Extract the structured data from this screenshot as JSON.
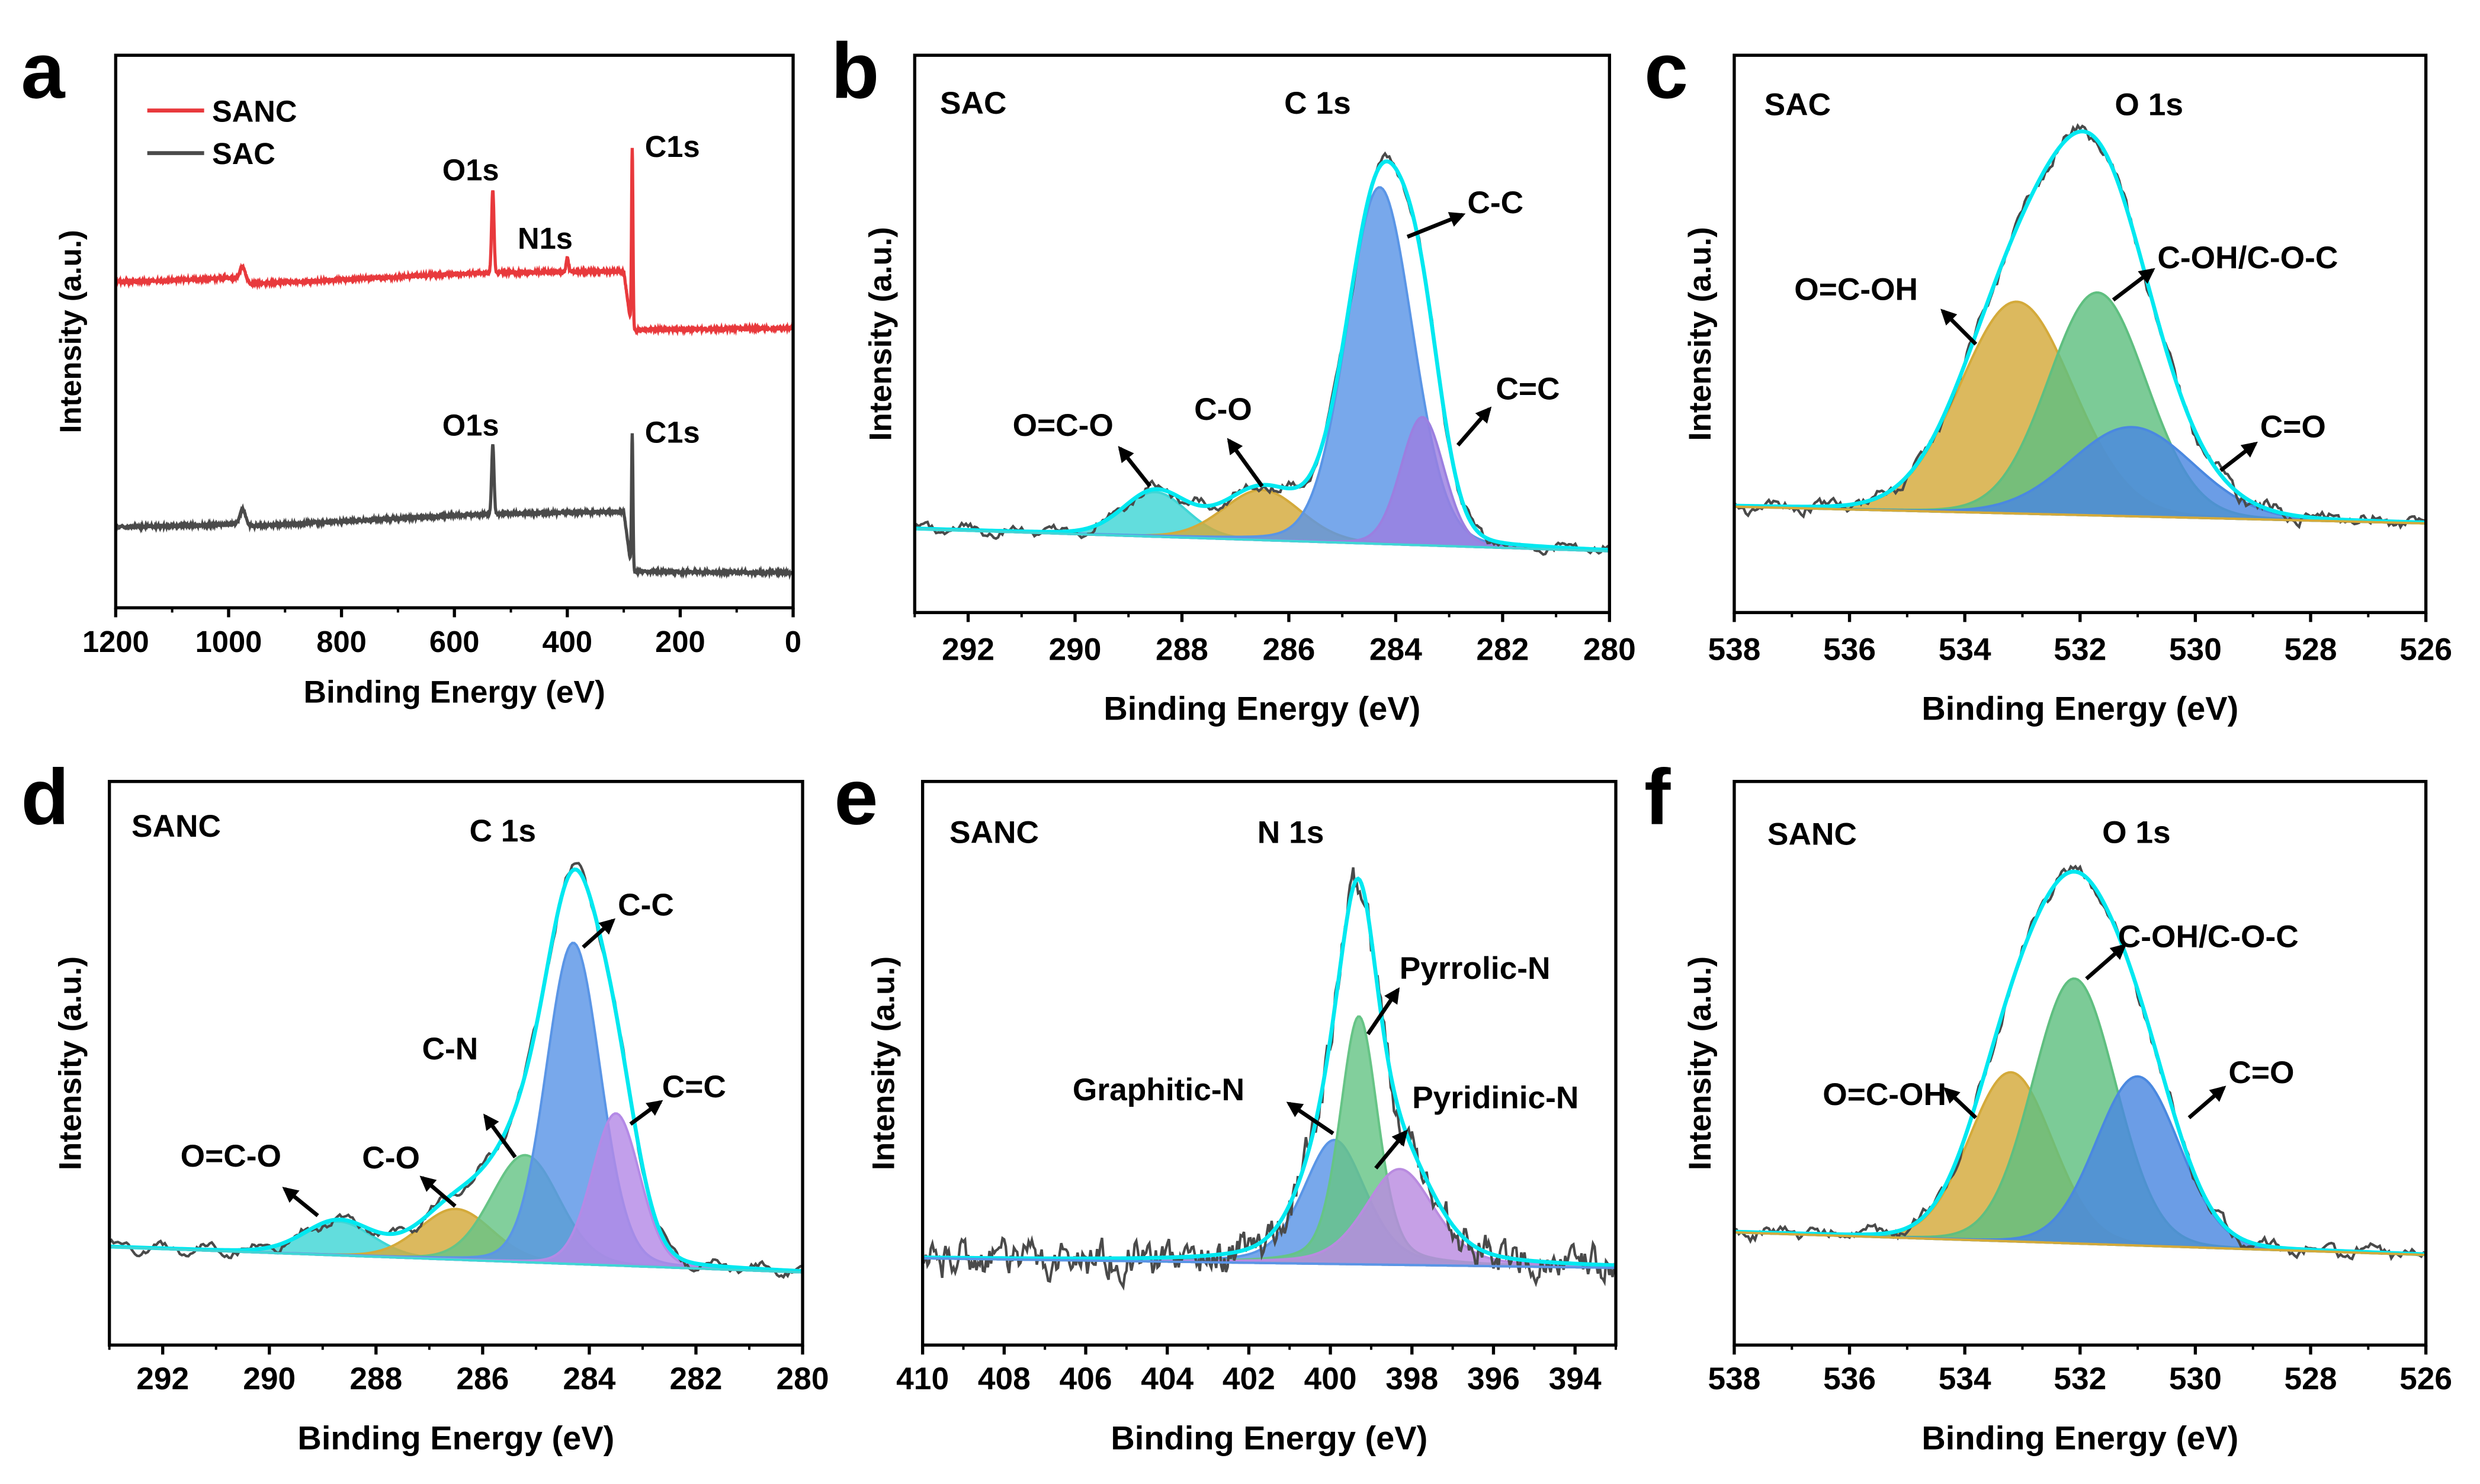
{
  "figure": {
    "panel_letters": [
      "a",
      "b",
      "c",
      "d",
      "e",
      "f"
    ]
  },
  "chart_data": [
    {
      "panel": "a",
      "type": "line",
      "xlabel": "Binding Energy (eV)",
      "ylabel": "Intensity (a.u.)",
      "xlim": [
        1200,
        0
      ],
      "ylim": [
        0,
        100
      ],
      "xticks": [
        1200,
        1000,
        800,
        600,
        400,
        200,
        0
      ],
      "legend_position": "top-left",
      "series": [
        {
          "name": "SANC",
          "color": "#e8393c",
          "baseline": [
            [
              1200,
              58.9
            ],
            [
              990,
              59.7
            ],
            [
              960,
              58.6
            ],
            [
              560,
              60.6
            ],
            [
              300,
              60.9
            ],
            [
              286,
              50.3
            ],
            [
              0,
              50.6
            ]
          ],
          "peaks": [
            {
              "label": "O1s",
              "center": 532,
              "height": 15,
              "fwhm": 5
            },
            {
              "label": "N1s",
              "center": 400,
              "height": 2.5,
              "fwhm": 5
            },
            {
              "label": "C1s",
              "center": 285,
              "height": 33,
              "fwhm": 3
            },
            {
              "center": 975,
              "height": 2.5,
              "fwhm": 12
            }
          ]
        },
        {
          "name": "SAC",
          "color": "#4a4a4a",
          "baseline": [
            [
              1200,
              14.6
            ],
            [
              990,
              15.1
            ],
            [
              960,
              14.8
            ],
            [
              560,
              16.9
            ],
            [
              300,
              17.4
            ],
            [
              286,
              6.6
            ],
            [
              0,
              6.3
            ]
          ],
          "peaks": [
            {
              "label": "O1s",
              "center": 532,
              "height": 12.5,
              "fwhm": 5
            },
            {
              "label": "C1s",
              "center": 285,
              "height": 25,
              "fwhm": 3
            },
            {
              "center": 975,
              "height": 2.8,
              "fwhm": 12
            }
          ]
        }
      ]
    },
    {
      "panel": "b",
      "type": "area",
      "sample": "SAC",
      "region": "C 1s",
      "xlabel": "Binding Energy (eV)",
      "ylabel": "Intensity (a.u.)",
      "xlim": [
        293,
        280
      ],
      "ylim": [
        0,
        100
      ],
      "xticks": [
        292,
        290,
        288,
        286,
        284,
        282,
        280
      ],
      "baseline": [
        [
          293,
          15
        ],
        [
          280,
          11
        ]
      ],
      "raw_color": "#4a4a4a",
      "envelope_color": "#00e8f0",
      "peaks": [
        {
          "label": "O=C-O",
          "center": 288.5,
          "height": 8,
          "fwhm": 1.4,
          "color": "#3fd6d6"
        },
        {
          "label": "C-O",
          "center": 286.5,
          "height": 9,
          "fwhm": 1.7,
          "color": "#d4aa3a"
        },
        {
          "label": "C-C",
          "center": 284.3,
          "height": 64,
          "fwhm": 1.45,
          "color": "#5a95e6"
        },
        {
          "label": "C=C",
          "center": 283.5,
          "height": 23,
          "fwhm": 0.95,
          "color": "#9b7fe0"
        }
      ]
    },
    {
      "panel": "c",
      "type": "area",
      "sample": "SAC",
      "region": "O 1s",
      "xlabel": "Binding Energy (eV)",
      "ylabel": "Intensity (a.u.)",
      "xlim": [
        538,
        526
      ],
      "ylim": [
        0,
        100
      ],
      "xticks": [
        538,
        536,
        534,
        532,
        530,
        528,
        526
      ],
      "baseline": [
        [
          538,
          19
        ],
        [
          526,
          16
        ]
      ],
      "raw_color": "#4a4a4a",
      "envelope_color": "#00e8f0",
      "peaks": [
        {
          "label": "O=C-OH",
          "center": 533.1,
          "height": 38,
          "fwhm": 2.3,
          "color": "#d4aa3a"
        },
        {
          "label": "C-OH/C-O-C",
          "center": 531.7,
          "height": 40,
          "fwhm": 2.0,
          "color": "#5fbf80"
        },
        {
          "label": "C=O",
          "center": 531.1,
          "height": 16,
          "fwhm": 2.5,
          "color": "#4a88e0"
        }
      ]
    },
    {
      "panel": "d",
      "type": "area",
      "sample": "SANC",
      "region": "C 1s",
      "xlabel": "Binding Energy (eV)",
      "ylabel": "Intensity (a.u.)",
      "xlim": [
        293,
        280
      ],
      "ylim": [
        0,
        100
      ],
      "xticks": [
        292,
        290,
        288,
        286,
        284,
        282,
        280
      ],
      "baseline": [
        [
          293,
          17.4
        ],
        [
          280,
          12.9
        ]
      ],
      "raw_color": "#4a4a4a",
      "envelope_color": "#00e8f0",
      "peaks": [
        {
          "label": "O=C-O",
          "center": 288.7,
          "height": 6,
          "fwhm": 1.5,
          "color": "#3fd6d6"
        },
        {
          "label": "C-O",
          "center": 286.5,
          "height": 9,
          "fwhm": 1.6,
          "color": "#d4aa3a"
        },
        {
          "label": "C-N",
          "center": 285.2,
          "height": 19,
          "fwhm": 1.5,
          "color": "#66c486"
        },
        {
          "label": "C-C",
          "center": 284.3,
          "height": 57,
          "fwhm": 1.2,
          "color": "#5a95e6"
        },
        {
          "label": "C=C",
          "center": 283.5,
          "height": 27,
          "fwhm": 1.05,
          "color": "#b48ae6"
        }
      ]
    },
    {
      "panel": "e",
      "type": "area",
      "sample": "SANC",
      "region": "N 1s",
      "xlabel": "Binding Energy (eV)",
      "ylabel": "Intensity (a.u.)",
      "xlim": [
        410,
        393
      ],
      "ylim": [
        0,
        100
      ],
      "xticks": [
        410,
        408,
        406,
        404,
        402,
        400,
        398,
        396,
        394
      ],
      "baseline": [
        [
          410,
          15.4
        ],
        [
          393,
          13.7
        ]
      ],
      "raw_color": "#4a4a4a",
      "envelope_color": "#00e8f0",
      "peaks": [
        {
          "label": "Graphitic-N",
          "center": 399.9,
          "height": 22,
          "fwhm": 1.8,
          "color": "#5a95e6"
        },
        {
          "label": "Pyrrolic-N",
          "center": 399.3,
          "height": 44,
          "fwhm": 1.1,
          "color": "#66c486"
        },
        {
          "label": "Pyridinic-N",
          "center": 398.3,
          "height": 17,
          "fwhm": 2.0,
          "color": "#b98be0"
        }
      ]
    },
    {
      "panel": "f",
      "type": "area",
      "sample": "SANC",
      "region": "O 1s",
      "xlabel": "Binding Energy (eV)",
      "ylabel": "Intensity (a.u.)",
      "xlim": [
        538,
        526
      ],
      "ylim": [
        0,
        100
      ],
      "xticks": [
        538,
        536,
        534,
        532,
        530,
        528,
        526
      ],
      "baseline": [
        [
          538,
          20
        ],
        [
          526,
          16
        ]
      ],
      "raw_color": "#4a4a4a",
      "envelope_color": "#00e8f0",
      "peaks": [
        {
          "label": "O=C-OH",
          "center": 533.2,
          "height": 30,
          "fwhm": 1.7,
          "color": "#d4aa3a"
        },
        {
          "label": "C-OH/C-O-C",
          "center": 532.1,
          "height": 47,
          "fwhm": 1.7,
          "color": "#5fbf80"
        },
        {
          "label": "C=O",
          "center": 531.0,
          "height": 30,
          "fwhm": 1.7,
          "color": "#4a88e0"
        }
      ]
    }
  ]
}
